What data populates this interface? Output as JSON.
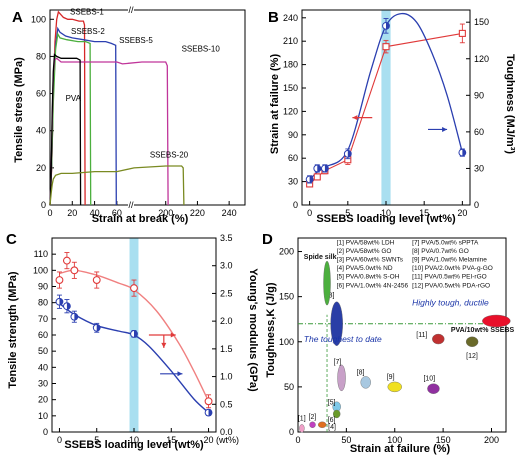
{
  "chart_data": [
    {
      "panel": "A",
      "type": "line",
      "xlabel": "Strain at break (%)",
      "ylabel": "Tensile stress (MPa)",
      "xlim": [
        0,
        250
      ],
      "ylim": [
        0,
        105
      ],
      "xticks": [
        0,
        20,
        40,
        60,
        200,
        220,
        240
      ],
      "yticks": [
        0,
        20,
        40,
        60,
        80,
        100
      ],
      "axis_break": [
        70,
        180
      ],
      "series": [
        {
          "name": "SSEBS-1",
          "color": "#d62728",
          "points": [
            [
              0,
              0
            ],
            [
              1.5,
              20
            ],
            [
              3,
              60
            ],
            [
              4.5,
              88
            ],
            [
              6,
              100
            ],
            [
              7.5,
              104
            ],
            [
              9,
              103
            ],
            [
              12,
              101
            ],
            [
              16,
              100
            ],
            [
              20,
              100
            ],
            [
              26,
              99
            ],
            [
              30,
              99
            ],
            [
              31,
              97
            ],
            [
              31.5,
              0
            ]
          ]
        },
        {
          "name": "SSEBS-2",
          "color": "#2b3fb0",
          "points": [
            [
              0,
              0
            ],
            [
              1.5,
              22
            ],
            [
              3,
              60
            ],
            [
              5,
              86
            ],
            [
              7,
              95
            ],
            [
              9,
              93
            ],
            [
              14,
              91
            ],
            [
              20,
              90
            ],
            [
              30,
              89
            ],
            [
              40,
              88
            ],
            [
              50,
              88
            ],
            [
              55,
              87
            ],
            [
              59,
              86
            ],
            [
              59.5,
              0
            ]
          ]
        },
        {
          "name": "SSEBS-5",
          "color": "#4caf3e",
          "points": [
            [
              0,
              0
            ],
            [
              1.5,
              22
            ],
            [
              3,
              55
            ],
            [
              5,
              84
            ],
            [
              7,
              92
            ],
            [
              9,
              90
            ],
            [
              15,
              89
            ],
            [
              25,
              88
            ],
            [
              32,
              88
            ],
            [
              36,
              87
            ],
            [
              36.5,
              0
            ]
          ]
        },
        {
          "name": "SSEBS-10",
          "color": "#c0359a",
          "points": [
            [
              0,
              0
            ],
            [
              1,
              15
            ],
            [
              2,
              45
            ],
            [
              3,
              70
            ],
            [
              4,
              78
            ],
            [
              6,
              79
            ],
            [
              10,
              77
            ],
            [
              20,
              77
            ],
            [
              40,
              77
            ],
            [
              60,
              77
            ],
            [
              65,
              76
            ],
            [
              185,
              77
            ],
            [
              200,
              77
            ],
            [
              201,
              75
            ],
            [
              201.5,
              0
            ]
          ]
        },
        {
          "name": "PVA",
          "color": "#000000",
          "points": [
            [
              0,
              0
            ],
            [
              1,
              15
            ],
            [
              2,
              50
            ],
            [
              3,
              72
            ],
            [
              4,
              81
            ],
            [
              6,
              80
            ],
            [
              10,
              79
            ],
            [
              18,
              79
            ],
            [
              24,
              79
            ],
            [
              27,
              78
            ],
            [
              27.5,
              0
            ]
          ]
        },
        {
          "name": "SSEBS-20",
          "color": "#7a8a22",
          "points": [
            [
              0,
              0
            ],
            [
              1,
              6
            ],
            [
              2,
              11
            ],
            [
              3,
              14
            ],
            [
              5,
              16
            ],
            [
              10,
              17
            ],
            [
              20,
              17
            ],
            [
              40,
              18
            ],
            [
              60,
              18
            ],
            [
              180,
              20
            ],
            [
              200,
              21
            ],
            [
              210,
              21
            ],
            [
              211,
              20
            ],
            [
              211.5,
              0
            ]
          ]
        }
      ]
    },
    {
      "panel": "B",
      "type": "line",
      "xlabel": "SSEBS loading level (wt%)",
      "ylabel": "Strain at failure (%)",
      "y2label": "Toughness (MJ/m³)",
      "xlim": [
        -1,
        21
      ],
      "ylim": [
        0,
        250
      ],
      "y2lim": [
        0,
        160
      ],
      "xticks": [
        0,
        5,
        10,
        15,
        20
      ],
      "yticks": [
        0,
        30,
        60,
        90,
        120,
        150,
        180,
        210,
        240
      ],
      "y2ticks": [
        0,
        30,
        60,
        90,
        120,
        150
      ],
      "highlight_x": [
        9.4,
        10.6
      ],
      "series": [
        {
          "axis": "left",
          "color": "#e03a3a",
          "x": [
            0,
            1,
            2,
            5,
            10,
            20
          ],
          "y": [
            27,
            36,
            44,
            58,
            203,
            220
          ],
          "err": [
            4,
            4,
            4,
            6,
            8,
            12
          ]
        },
        {
          "axis": "right",
          "color": "#2b3fb0",
          "x": [
            0,
            1,
            2,
            5,
            10,
            20
          ],
          "y": [
            21,
            30,
            30,
            42,
            147,
            43
          ],
          "err": [
            3,
            3,
            3,
            4,
            6,
            3
          ]
        }
      ]
    },
    {
      "panel": "C",
      "type": "line",
      "xlabel": "SSEBS loading level (wt%)",
      "ylabel": "Tensile strength (MPa)",
      "y2label": "Young's modulus (GPa)",
      "xlim": [
        -1,
        21
      ],
      "ylim": [
        0,
        120
      ],
      "y2lim": [
        0,
        3.5
      ],
      "xticks": [
        0,
        5,
        10,
        15,
        20
      ],
      "xtick_suffix_last": " (wt%)",
      "yticks": [
        0,
        10,
        20,
        30,
        40,
        50,
        60,
        70,
        80,
        90,
        100,
        110
      ],
      "y2ticks": [
        "0.0",
        "0.5",
        "1.0",
        "1.5",
        "2.0",
        "2.5",
        "3.0",
        "3.5"
      ],
      "highlight_x": [
        9.4,
        10.6
      ],
      "series": [
        {
          "axis": "left",
          "color": "#e03a3a",
          "x": [
            0,
            1,
            2,
            5,
            10,
            20
          ],
          "y": [
            94,
            106,
            100,
            94,
            89,
            19
          ],
          "err": [
            5,
            5,
            5,
            5,
            5,
            4
          ]
        },
        {
          "axis": "right",
          "color": "#2b3fb0",
          "x": [
            0,
            1,
            2,
            5,
            10,
            20
          ],
          "y": [
            2.35,
            2.27,
            2.08,
            1.88,
            1.77,
            0.35
          ],
          "err": [
            0.12,
            0.12,
            0.1,
            0.08,
            0.06,
            0.05
          ]
        }
      ]
    },
    {
      "panel": "D",
      "type": "scatter",
      "xlabel": "Strain at failure (%)",
      "ylabel": "Toughness,K (J/g)",
      "xlim": [
        0,
        215
      ],
      "ylim": [
        0,
        215
      ],
      "xticks": [
        0,
        50,
        100,
        150,
        200
      ],
      "yticks": [
        0,
        50,
        100,
        150,
        200
      ],
      "legend": [
        "[1] PVA/58wt% LDH",
        "[2] PVA/58wt% GO",
        "[3] PVA/60wt% SWNTs",
        "[4] PVA/5.0wt% ND",
        "[5] PVA/0.8wt% S-OH",
        "[6] PVA/1.0wt% 4N-2456",
        "[7] PVA/5.0wt% sPPTA",
        "[8] PVA/0.7wt% GO",
        "[9] PVA/1.0wt% Melamine",
        "[10] PVA/2.0wt% PVA-g-GO",
        "[11] PVA/0.5wt% PEI-rGO",
        "[12] PVA/0.5wt% PDA-rGO"
      ],
      "annotations": [
        "Spide silk",
        "Highly tough, ductile",
        "The toughest to date",
        "PVA/10wt% SSEBS"
      ],
      "guide_y": 120,
      "points": [
        {
          "label": "[1]",
          "x": 4,
          "y": 4,
          "color": "#f0a0c8"
        },
        {
          "label": "[2]",
          "x": 15,
          "y": 8,
          "color": "#c040c0"
        },
        {
          "label": "[3]",
          "x": 40,
          "y": 120,
          "color": "#2a3ea6"
        },
        {
          "label": "[4]",
          "x": 25,
          "y": 8,
          "color": "#e07020"
        },
        {
          "label": "[5]",
          "x": 40,
          "y": 28,
          "color": "#7ec8e8"
        },
        {
          "label": "[6]",
          "x": 40,
          "y": 20,
          "color": "#6a9a2a"
        },
        {
          "label": "[7]",
          "x": 45,
          "y": 60,
          "color": "#c8a0c8"
        },
        {
          "label": "[8]",
          "x": 70,
          "y": 55,
          "color": "#a8c8e0"
        },
        {
          "label": "[9]",
          "x": 100,
          "y": 50,
          "color": "#f0e020"
        },
        {
          "label": "[10]",
          "x": 140,
          "y": 48,
          "color": "#9030a0"
        },
        {
          "label": "[11]",
          "x": 145,
          "y": 103,
          "color": "#c03030"
        },
        {
          "label": "[12]",
          "x": 180,
          "y": 100,
          "color": "#6a6a2a"
        },
        {
          "label": "Spide silk",
          "x": 30,
          "y": 165,
          "color": "#4caf3e"
        },
        {
          "label": "PVA/10wt% SSEBS",
          "x": 205,
          "y": 123,
          "color": "#e8102a"
        }
      ]
    }
  ]
}
